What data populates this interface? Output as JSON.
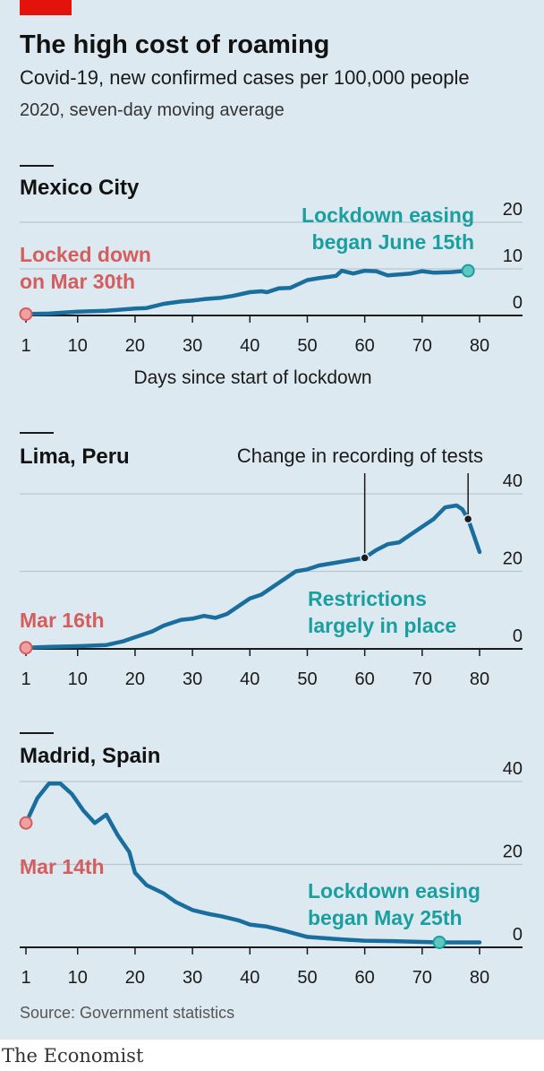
{
  "header": {
    "title": "The high cost of roaming",
    "subtitle": "Covid-19, new confirmed cases per 100,000 people",
    "subtitle2": "2020, seven-day moving average"
  },
  "source": "Source: Government statistics",
  "brand": "The Economist",
  "colors": {
    "background": "#dde9f0",
    "line": "#1a6e9e",
    "accent_red": "#e3120b",
    "annotation_red": "#d45d5d",
    "annotation_teal": "#1a9fa0",
    "marker_red_fill": "#f0a0a0",
    "marker_teal_fill": "#5fc7c2",
    "grid": "#b8c7d0"
  },
  "chart_data": [
    {
      "type": "line",
      "title": "Mexico City",
      "xlabel": "Days since start of lockdown",
      "ylabel": "",
      "xlim": [
        1,
        80
      ],
      "ylim": [
        0,
        20
      ],
      "xticks": [
        "1",
        "10",
        "20",
        "30",
        "40",
        "50",
        "60",
        "70",
        "80"
      ],
      "yticks": [
        "0",
        "10",
        "20"
      ],
      "annotations": [
        {
          "text": [
            "Locked down",
            "on Mar 30th"
          ],
          "color": "red",
          "x": 1,
          "y": 0.3
        },
        {
          "text": [
            "Lockdown easing",
            "began June 15th"
          ],
          "color": "teal",
          "x": 78,
          "y": 9.6
        }
      ],
      "series": [
        {
          "x": [
            1,
            5,
            10,
            15,
            20,
            22,
            25,
            28,
            30,
            32,
            35,
            37,
            40,
            42,
            43,
            45,
            47,
            50,
            52,
            55,
            56,
            58,
            60,
            62,
            64,
            66,
            68,
            70,
            72,
            75,
            78
          ],
          "y": [
            0.3,
            0.4,
            0.8,
            1.0,
            1.5,
            1.6,
            2.5,
            3.0,
            3.2,
            3.5,
            3.8,
            4.2,
            5.0,
            5.2,
            5.0,
            5.8,
            5.9,
            7.6,
            8.0,
            8.5,
            9.6,
            9.0,
            9.6,
            9.5,
            8.6,
            8.8,
            9.0,
            9.5,
            9.2,
            9.3,
            9.6
          ]
        }
      ]
    },
    {
      "type": "line",
      "title": "Lima, Peru",
      "xlabel": "",
      "ylabel": "",
      "xlim": [
        1,
        80
      ],
      "ylim": [
        0,
        40
      ],
      "xticks": [
        "1",
        "10",
        "20",
        "30",
        "40",
        "50",
        "60",
        "70",
        "80"
      ],
      "yticks": [
        "0",
        "20",
        "40"
      ],
      "annotations": [
        {
          "text": [
            "Mar 16th"
          ],
          "color": "red",
          "x": 1,
          "y": 0.3
        },
        {
          "text": [
            "Restrictions",
            "largely in place"
          ],
          "color": "teal",
          "x": 60,
          "y": 23
        }
      ],
      "callout": {
        "text": "Change in recording of tests",
        "points": [
          [
            60,
            23.5
          ],
          [
            78,
            33.5
          ]
        ]
      },
      "series": [
        {
          "x": [
            1,
            5,
            10,
            15,
            18,
            20,
            23,
            25,
            28,
            30,
            32,
            34,
            36,
            38,
            40,
            42,
            44,
            46,
            48,
            50,
            52,
            54,
            56,
            58,
            60,
            62,
            64,
            66,
            68,
            70,
            72,
            74,
            76,
            77,
            78,
            80
          ],
          "y": [
            0.3,
            0.5,
            0.7,
            1.0,
            2.0,
            3.0,
            4.5,
            6.0,
            7.5,
            7.8,
            8.5,
            8.0,
            9.0,
            11.0,
            13.0,
            14.0,
            16.0,
            18.0,
            20.0,
            20.5,
            21.5,
            22.0,
            22.5,
            23.0,
            23.5,
            25.5,
            27.0,
            27.5,
            29.5,
            31.5,
            33.5,
            36.5,
            37.0,
            36.0,
            33.5,
            25.0
          ]
        }
      ]
    },
    {
      "type": "line",
      "title": "Madrid, Spain",
      "xlabel": "",
      "ylabel": "",
      "xlim": [
        1,
        80
      ],
      "ylim": [
        0,
        40
      ],
      "xticks": [
        "1",
        "10",
        "20",
        "30",
        "40",
        "50",
        "60",
        "70",
        "80"
      ],
      "yticks": [
        "0",
        "20",
        "40"
      ],
      "annotations": [
        {
          "text": [
            "Mar 14th"
          ],
          "color": "red",
          "x": 1,
          "y": 30
        },
        {
          "text": [
            "Lockdown easing",
            "began May 25th"
          ],
          "color": "teal",
          "x": 73,
          "y": 1.2
        }
      ],
      "series": [
        {
          "x": [
            1,
            3,
            5,
            7,
            9,
            11,
            13,
            15,
            17,
            19,
            20,
            22,
            25,
            27,
            30,
            33,
            35,
            38,
            40,
            43,
            46,
            50,
            55,
            60,
            65,
            70,
            73,
            76,
            80
          ],
          "y": [
            30,
            36,
            39.5,
            39.5,
            37,
            33,
            30,
            32,
            27,
            23,
            18,
            15,
            13,
            11,
            9,
            8,
            7.5,
            6.5,
            5.5,
            5,
            4,
            2.5,
            2.0,
            1.6,
            1.5,
            1.3,
            1.2,
            1.2,
            1.2
          ]
        }
      ]
    }
  ]
}
